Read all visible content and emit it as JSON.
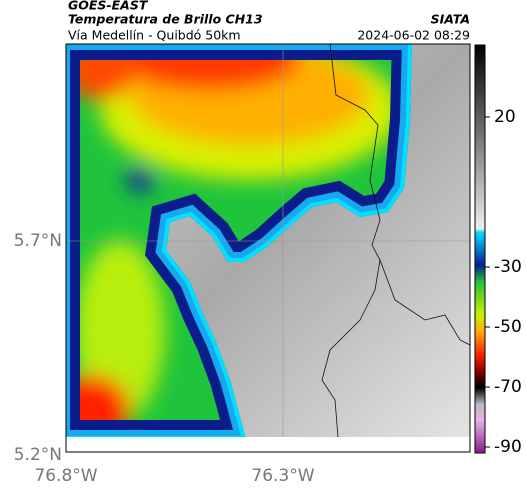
{
  "header": {
    "product": "GOES-EAST",
    "title": "Temperatura de Brillo CH13",
    "subtitle": "Vía Medellín - Quibdó 50km",
    "source": "SIATA",
    "datetime": "2024-06-02 08:29"
  },
  "map": {
    "lat_labels": [
      "5.7°N",
      "5.2°N"
    ],
    "lon_labels": [
      "76.8°W",
      "76.3°W"
    ]
  },
  "colorbar": {
    "lim": [
      -92,
      44
    ],
    "ticks": [
      20,
      -30,
      -50,
      -70,
      -90
    ]
  }
}
